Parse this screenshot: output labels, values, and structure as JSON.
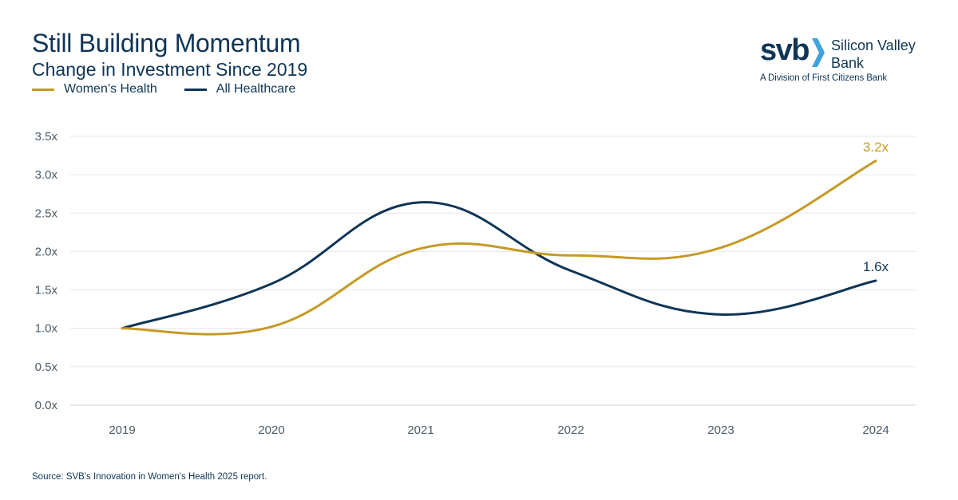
{
  "title": "Still Building Momentum",
  "subtitle": "Change in Investment Since 2019",
  "logo": {
    "short": "svb",
    "name_line1": "Silicon Valley",
    "name_line2": "Bank",
    "division": "A Division of First Citizens Bank"
  },
  "source": "Source: SVB's Innovation in Women's Health 2025 report.",
  "colors": {
    "womens": "#c59a25",
    "all": "#0f3556",
    "grid": "#e6e6e6",
    "text": "#0f3556"
  },
  "chart_data": {
    "type": "line",
    "title": "Still Building Momentum",
    "subtitle": "Change in Investment Since 2019",
    "xlabel": "",
    "ylabel": "",
    "categories": [
      "2019",
      "2020",
      "2021",
      "2022",
      "2023",
      "2024"
    ],
    "y_ticks": [
      "0.0x",
      "0.5x",
      "1.0x",
      "1.5x",
      "2.0x",
      "2.5x",
      "3.0x",
      "3.5x"
    ],
    "y_tick_values": [
      0,
      0.5,
      1.0,
      1.5,
      2.0,
      2.5,
      3.0,
      3.5
    ],
    "ylim": [
      0,
      3.5
    ],
    "grid": true,
    "legend_position": "top-left",
    "series": [
      {
        "name": "Women's Health",
        "legend_label": "Women’s Health",
        "color": "#c59a25",
        "values": [
          1.0,
          1.02,
          2.04,
          1.95,
          2.05,
          3.18
        ],
        "end_label": "3.2x"
      },
      {
        "name": "All Healthcare",
        "legend_label": "All Healthcare",
        "color": "#0f3556",
        "values": [
          1.0,
          1.58,
          2.64,
          1.75,
          1.18,
          1.62
        ],
        "end_label": "1.6x"
      }
    ]
  }
}
